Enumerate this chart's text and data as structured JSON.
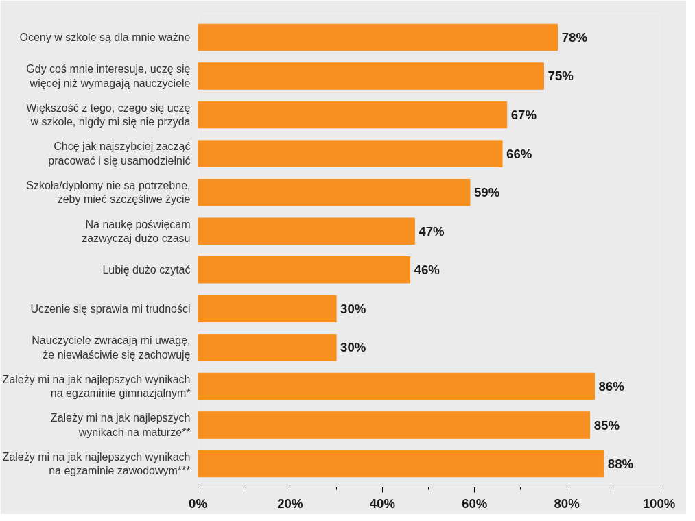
{
  "chart_data": {
    "type": "bar",
    "orientation": "horizontal",
    "categories": [
      "Oceny w szkole są dla mnie ważne",
      "Gdy coś mnie interesuje, uczę się\nwięcej niż wymagają nauczyciele",
      "Większość z tego, czego się uczę\nw szkole, nigdy mi się nie przyda",
      "Chcę jak najszybciej zacząć\npracować i się usamodzielnić",
      "Szkoła/dyplomy nie są potrzebne,\nżeby mieć szczęśliwe życie",
      "Na naukę poświęcam\nzazwyczaj dużo czasu",
      "Lubię dużo czytać",
      "Uczenie się sprawia mi trudności",
      "Nauczyciele zwracają mi uwagę,\nże niewłaściwie się zachowuję",
      "Zależy mi na jak najlepszych wynikach\nna egzaminie gimnazjalnym*",
      "Zależy mi na jak najlepszych\nwynikach na maturze**",
      "Zależy mi na jak najlepszych wynikach\nna egzaminie zawodowym***"
    ],
    "values": [
      78,
      75,
      67,
      66,
      59,
      47,
      46,
      30,
      30,
      86,
      85,
      88
    ],
    "value_labels": [
      "78%",
      "75%",
      "67%",
      "66%",
      "59%",
      "47%",
      "46%",
      "30%",
      "30%",
      "86%",
      "85%",
      "88%"
    ],
    "color": "#f7901e",
    "xlim": [
      0,
      100
    ],
    "xticks": [
      {
        "value": 0,
        "label": "0%"
      },
      {
        "value": 20,
        "label": "20%"
      },
      {
        "value": 40,
        "label": "40%"
      },
      {
        "value": 60,
        "label": "60%"
      },
      {
        "value": 80,
        "label": "80%"
      },
      {
        "value": 100,
        "label": "100%"
      }
    ],
    "grid": false
  }
}
